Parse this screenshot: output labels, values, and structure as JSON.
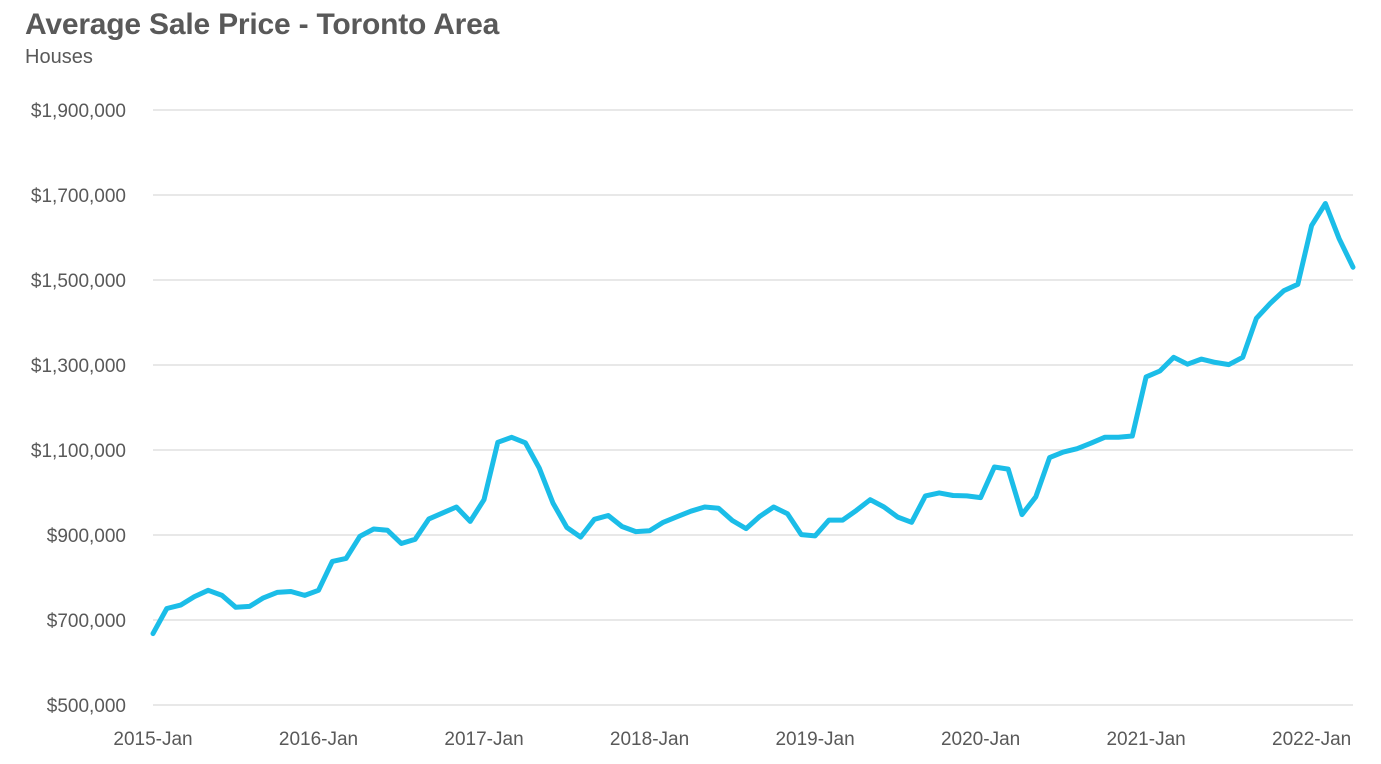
{
  "chart_data": {
    "type": "line",
    "title": "Average Sale Price - Toronto Area",
    "subtitle": "Houses",
    "xlabel": "",
    "ylabel": "",
    "ylim": [
      500000,
      1900000
    ],
    "y_ticks": [
      500000,
      700000,
      900000,
      1100000,
      1300000,
      1500000,
      1700000,
      1900000
    ],
    "y_tick_labels": [
      "$500,000",
      "$700,000",
      "$900,000",
      "$1,100,000",
      "$1,300,000",
      "$1,500,000",
      "$1,700,000",
      "$1,900,000"
    ],
    "x_tick_labels": [
      "2015-Jan",
      "2016-Jan",
      "2017-Jan",
      "2018-Jan",
      "2019-Jan",
      "2020-Jan",
      "2021-Jan",
      "2022-Jan"
    ],
    "x_tick_index": [
      0,
      12,
      24,
      36,
      48,
      60,
      72,
      84
    ],
    "grid": true,
    "legend": "none",
    "line_color": "#1bbde8",
    "series": [
      {
        "values": [
          668000,
          727000,
          735000,
          755000,
          770000,
          758000,
          730000,
          732000,
          752000,
          765000,
          767000,
          758000,
          770000,
          838000,
          845000,
          897000,
          914000,
          911000,
          880000,
          890000,
          938000,
          952000,
          966000,
          932000,
          983000,
          1118000,
          1130000,
          1117000,
          1058000,
          975000,
          918000,
          895000,
          937000,
          946000,
          920000,
          908000,
          910000,
          930000,
          943000,
          956000,
          966000,
          963000,
          934000,
          915000,
          944000,
          966000,
          950000,
          901000,
          898000,
          935000,
          935000,
          958000,
          983000,
          966000,
          942000,
          930000,
          992000,
          999000,
          993000,
          992000,
          988000,
          1060000,
          1055000,
          948000,
          990000,
          1082000,
          1095000,
          1103000,
          1116000,
          1130000,
          1130000,
          1133000,
          1272000,
          1286000,
          1318000,
          1302000,
          1314000,
          1306000,
          1301000,
          1318000,
          1410000,
          1445000,
          1475000,
          1490000,
          1628000,
          1680000,
          1597000,
          1530000
        ]
      }
    ]
  }
}
